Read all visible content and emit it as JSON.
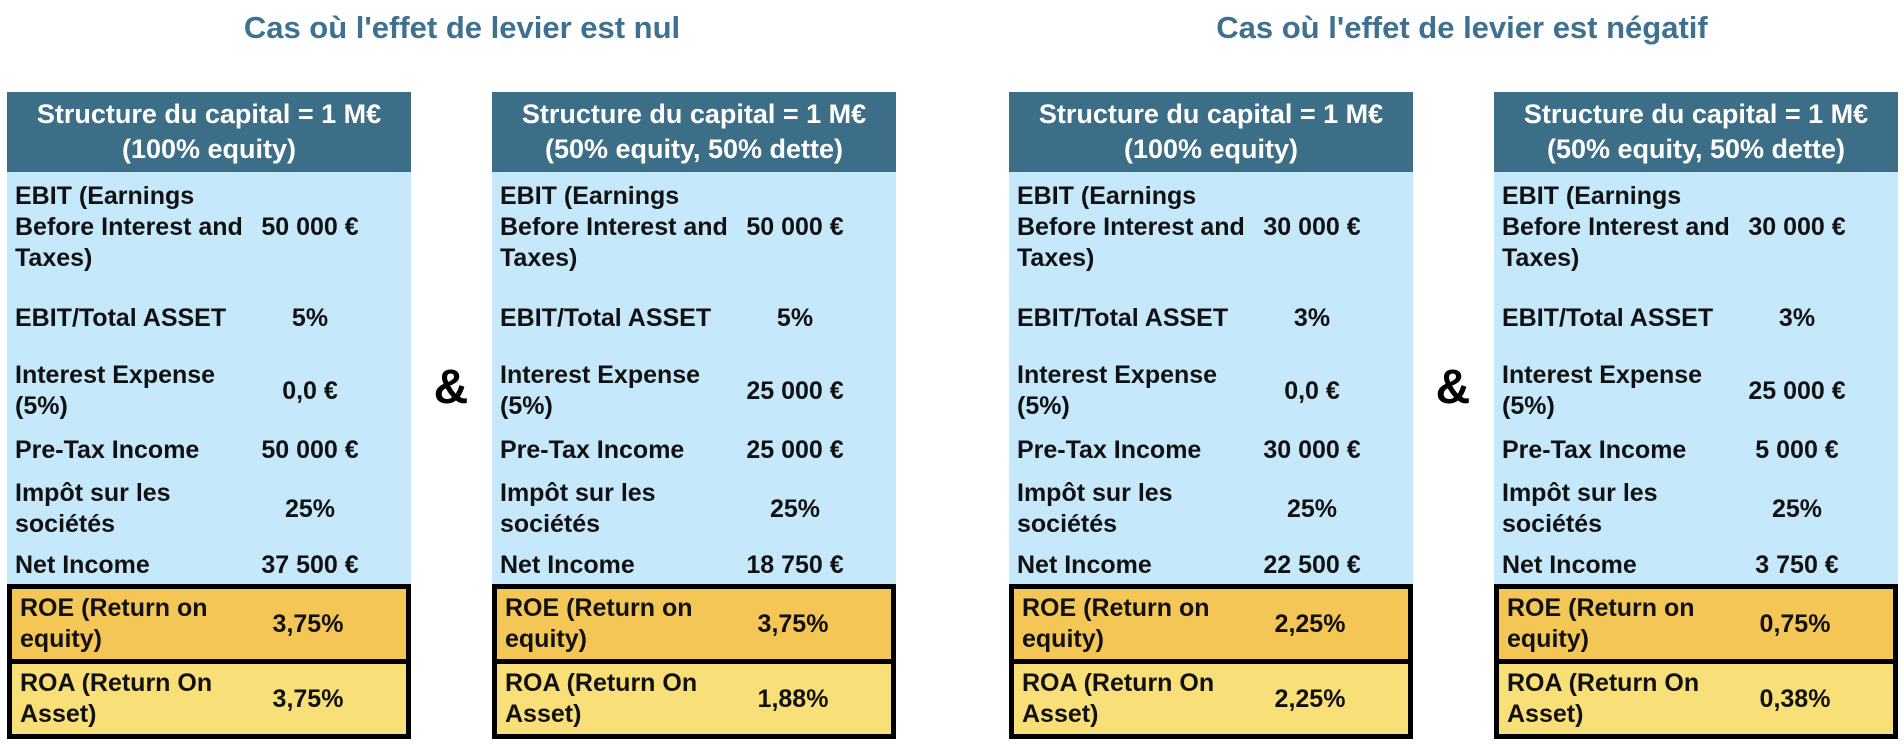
{
  "titles": {
    "left": "Cas où l'effet de levier est nul",
    "right": "Cas où l'effet de levier est négatif"
  },
  "ampersand": "&",
  "tables": [
    {
      "header_line1": "Structure du capital = 1 M€",
      "header_line2": "(100% equity)",
      "rows": {
        "ebit": {
          "label": "EBIT (Earnings Before Interest and Taxes)",
          "value": "50 000 €"
        },
        "ratio": {
          "label": "EBIT/Total ASSET",
          "value": "5%"
        },
        "interest": {
          "label": "Interest Expense (5%)",
          "value": "0,0 €"
        },
        "pretax": {
          "label": "Pre-Tax Income",
          "value": "50 000 €"
        },
        "tax": {
          "label": "Impôt sur les sociétés",
          "value": "25%"
        },
        "net": {
          "label": "Net Income",
          "value": "37 500 €"
        },
        "roe": {
          "label": "ROE (Return on equity)",
          "value": "3,75%"
        },
        "roa": {
          "label": "ROA (Return On Asset)",
          "value": "3,75%"
        }
      }
    },
    {
      "header_line1": "Structure du capital = 1 M€",
      "header_line2": "(50% equity, 50% dette)",
      "rows": {
        "ebit": {
          "label": "EBIT (Earnings Before Interest and Taxes)",
          "value": "50 000 €"
        },
        "ratio": {
          "label": "EBIT/Total ASSET",
          "value": "5%"
        },
        "interest": {
          "label": "Interest Expense (5%)",
          "value": "25 000 €"
        },
        "pretax": {
          "label": "Pre-Tax Income",
          "value": "25 000 €"
        },
        "tax": {
          "label": "Impôt sur les sociétés",
          "value": "25%"
        },
        "net": {
          "label": "Net Income",
          "value": "18 750 €"
        },
        "roe": {
          "label": "ROE (Return on equity)",
          "value": "3,75%"
        },
        "roa": {
          "label": "ROA (Return On Asset)",
          "value": "1,88%"
        }
      }
    },
    {
      "header_line1": "Structure du capital = 1 M€",
      "header_line2": "(100% equity)",
      "rows": {
        "ebit": {
          "label": "EBIT (Earnings Before Interest and Taxes)",
          "value": "30 000 €"
        },
        "ratio": {
          "label": "EBIT/Total ASSET",
          "value": "3%"
        },
        "interest": {
          "label": "Interest Expense (5%)",
          "value": "0,0 €"
        },
        "pretax": {
          "label": "Pre-Tax Income",
          "value": "30 000 €"
        },
        "tax": {
          "label": "Impôt sur les sociétés",
          "value": "25%"
        },
        "net": {
          "label": "Net Income",
          "value": "22 500 €"
        },
        "roe": {
          "label": "ROE (Return on equity)",
          "value": "2,25%"
        },
        "roa": {
          "label": "ROA (Return On Asset)",
          "value": "2,25%"
        }
      }
    },
    {
      "header_line1": "Structure du capital = 1 M€",
      "header_line2": "(50% equity, 50% dette)",
      "rows": {
        "ebit": {
          "label": "EBIT (Earnings Before Interest and Taxes)",
          "value": "30 000 €"
        },
        "ratio": {
          "label": "EBIT/Total ASSET",
          "value": "3%"
        },
        "interest": {
          "label": "Interest Expense (5%)",
          "value": "25 000 €"
        },
        "pretax": {
          "label": "Pre-Tax Income",
          "value": "5 000 €"
        },
        "tax": {
          "label": "Impôt sur les sociétés",
          "value": "25%"
        },
        "net": {
          "label": "Net Income",
          "value": "3 750 €"
        },
        "roe": {
          "label": "ROE (Return on equity)",
          "value": "0,75%"
        },
        "roa": {
          "label": "ROA (Return On Asset)",
          "value": "0,38%"
        }
      }
    }
  ],
  "colors": {
    "title": "#3e7090",
    "header_bg": "#3d6e87",
    "body_bg": "#c5e8fa",
    "roe_bg": "#f4c656",
    "roa_bg": "#f9df78"
  }
}
